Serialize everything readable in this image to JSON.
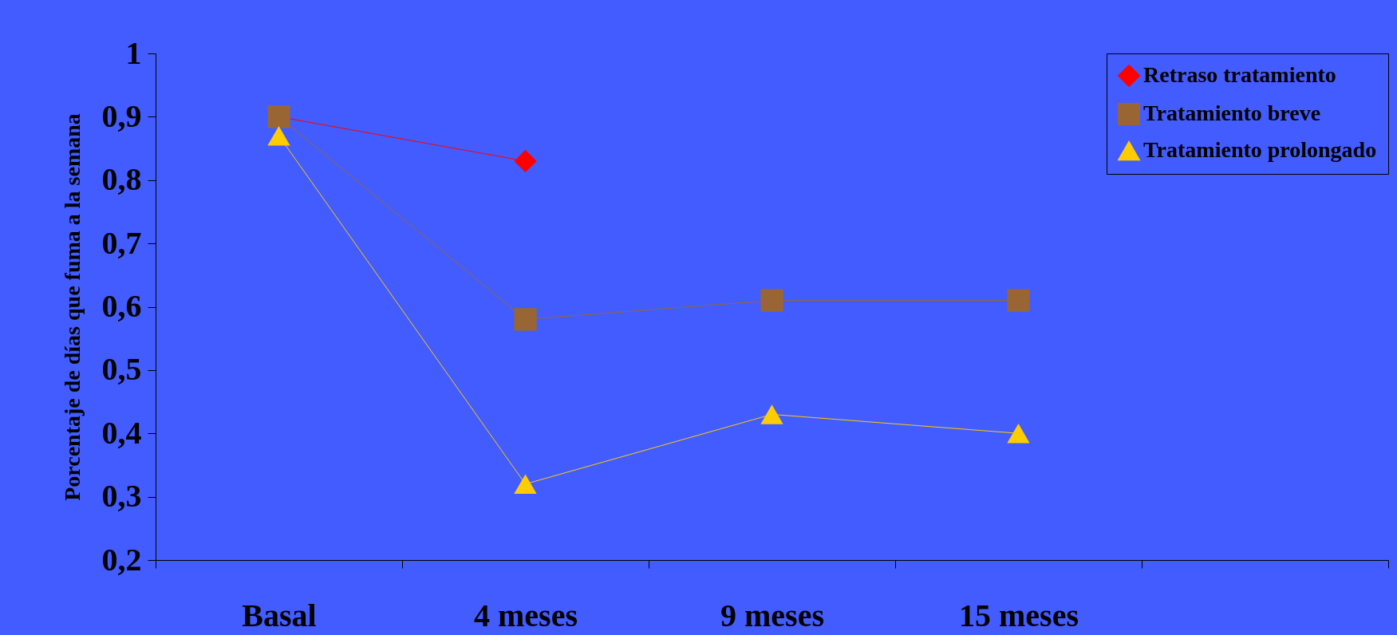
{
  "chart_data": {
    "type": "line",
    "ylabel": "Porcentaje de días que fuma a la semana",
    "categories": [
      "Basal",
      "4 meses",
      "9 meses",
      "15 meses",
      null
    ],
    "series": [
      {
        "name": "Retraso tratamiento",
        "color": "#ff0000",
        "marker": "diamond",
        "values": [
          0.9,
          0.83,
          null,
          null,
          null
        ]
      },
      {
        "name": "Tratamiento breve",
        "color": "#996633",
        "marker": "square",
        "values": [
          0.9,
          0.58,
          0.61,
          0.61,
          null
        ]
      },
      {
        "name": "Tratamiento prolongado",
        "color": "#ffcc00",
        "marker": "triangle",
        "values": [
          0.87,
          0.32,
          0.43,
          0.4,
          null
        ]
      }
    ],
    "ylim": [
      0.2,
      1
    ],
    "yticks": [
      {
        "value": 0.2,
        "label": "0,2"
      },
      {
        "value": 0.3,
        "label": "0,3"
      },
      {
        "value": 0.4,
        "label": "0,4"
      },
      {
        "value": 0.5,
        "label": "0,5"
      },
      {
        "value": 0.6,
        "label": "0,6"
      },
      {
        "value": 0.7,
        "label": "0,7"
      },
      {
        "value": 0.8,
        "label": "0,8"
      },
      {
        "value": 0.9,
        "label": "0,9"
      },
      1
    ],
    "grid": false,
    "legend": "top right"
  }
}
